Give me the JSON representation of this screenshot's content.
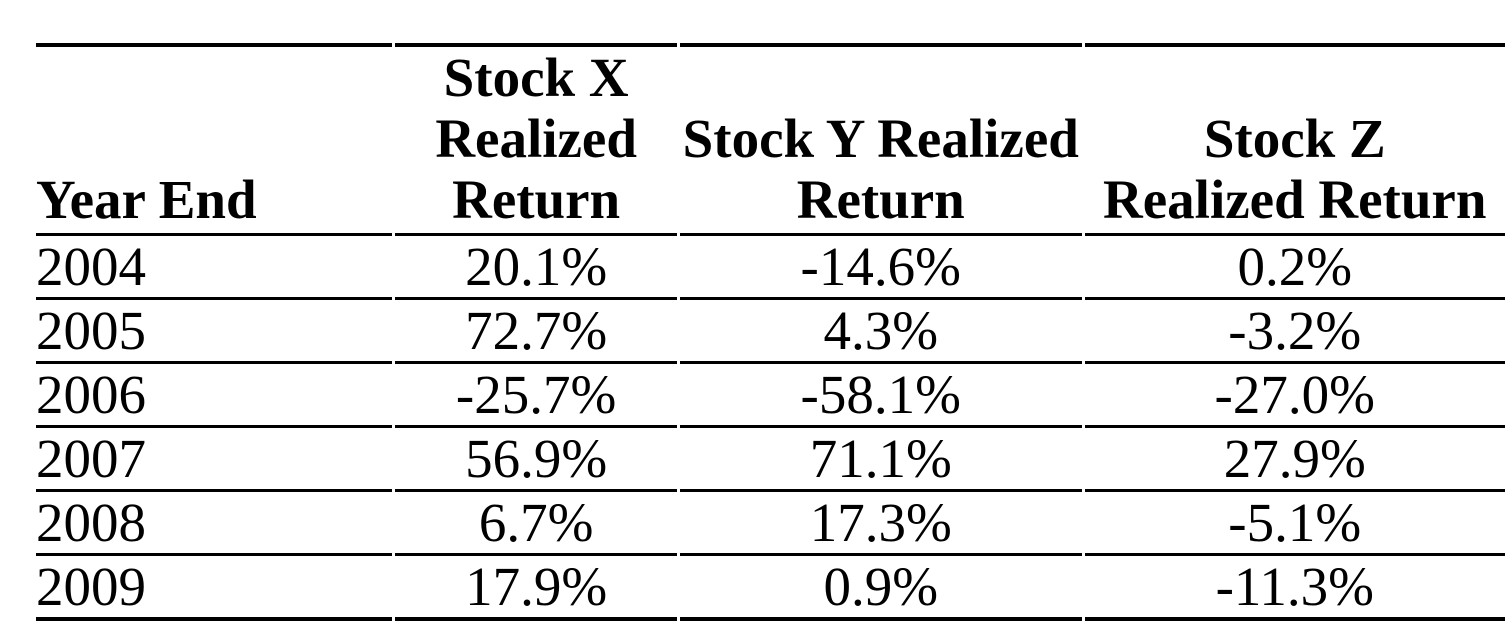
{
  "page": {
    "background_color": "#ffffff",
    "text_color": "#000000",
    "rule_color": "#000000"
  },
  "table": {
    "columns": [
      {
        "id": "year_end",
        "lines": [
          "Year End"
        ]
      },
      {
        "id": "stock_x",
        "lines": [
          "Stock X",
          "Realized",
          "Return"
        ]
      },
      {
        "id": "stock_y",
        "lines": [
          "Stock Y Realized",
          "Return"
        ]
      },
      {
        "id": "stock_z",
        "lines": [
          "Stock Z",
          "Realized Return"
        ]
      }
    ],
    "rows": [
      {
        "year_end": "2004",
        "stock_x": "20.1%",
        "stock_y": "-14.6%",
        "stock_z": "0.2%"
      },
      {
        "year_end": "2005",
        "stock_x": "72.7%",
        "stock_y": "4.3%",
        "stock_z": "-3.2%"
      },
      {
        "year_end": "2006",
        "stock_x": "-25.7%",
        "stock_y": "-58.1%",
        "stock_z": "-27.0%"
      },
      {
        "year_end": "2007",
        "stock_x": "56.9%",
        "stock_y": "71.1%",
        "stock_z": "27.9%"
      },
      {
        "year_end": "2008",
        "stock_x": "6.7%",
        "stock_y": "17.3%",
        "stock_z": "-5.1%"
      },
      {
        "year_end": "2009",
        "stock_x": "17.9%",
        "stock_y": "0.9%",
        "stock_z": "-11.3%"
      }
    ]
  },
  "chart_data": {
    "type": "table",
    "title": "",
    "columns": [
      "Year End",
      "Stock X Realized Return",
      "Stock Y Realized Return",
      "Stock Z Realized Return"
    ],
    "categories": [
      "2004",
      "2005",
      "2006",
      "2007",
      "2008",
      "2009"
    ],
    "series": [
      {
        "name": "Stock X Realized Return",
        "values": [
          20.1,
          72.7,
          -25.7,
          56.9,
          6.7,
          17.9
        ],
        "unit": "%"
      },
      {
        "name": "Stock Y Realized Return",
        "values": [
          -14.6,
          4.3,
          -58.1,
          71.1,
          17.3,
          0.9
        ],
        "unit": "%"
      },
      {
        "name": "Stock Z Realized Return",
        "values": [
          0.2,
          -3.2,
          -27.0,
          27.9,
          -5.1,
          -11.3
        ],
        "unit": "%"
      }
    ]
  }
}
